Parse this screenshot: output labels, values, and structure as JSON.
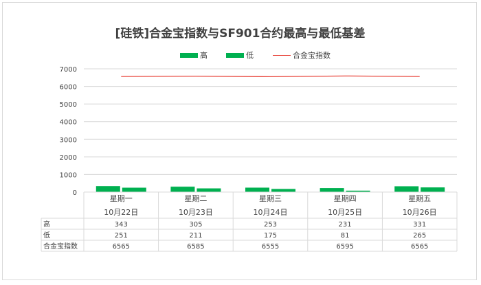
{
  "title": "[硅铁]合金宝指数与SF901合约最高与最低基差",
  "legend": {
    "high": "高",
    "low": "低",
    "index": "合金宝指数"
  },
  "colors": {
    "bar": "#00b050",
    "line": "#e8443a",
    "grid": "#d9d9d9",
    "text": "#404040"
  },
  "chart_data": {
    "type": "bar",
    "categories": [
      [
        "星期一",
        "10月22日"
      ],
      [
        "星期二",
        "10月23日"
      ],
      [
        "星期三",
        "10月24日"
      ],
      [
        "星期四",
        "10月25日"
      ],
      [
        "星期五",
        "10月26日"
      ]
    ],
    "series": [
      {
        "name": "高",
        "type": "bar",
        "values": [
          343,
          305,
          253,
          231,
          331
        ]
      },
      {
        "name": "低",
        "type": "bar",
        "values": [
          251,
          211,
          175,
          81,
          265
        ]
      },
      {
        "name": "合金宝指数",
        "type": "line",
        "values": [
          6565,
          6585,
          6555,
          6595,
          6565
        ]
      }
    ],
    "ylim": [
      0,
      7000
    ],
    "yticks": [
      0,
      1000,
      2000,
      3000,
      4000,
      5000,
      6000,
      7000
    ],
    "grid": true,
    "legend_position": "top",
    "data_table": true
  }
}
